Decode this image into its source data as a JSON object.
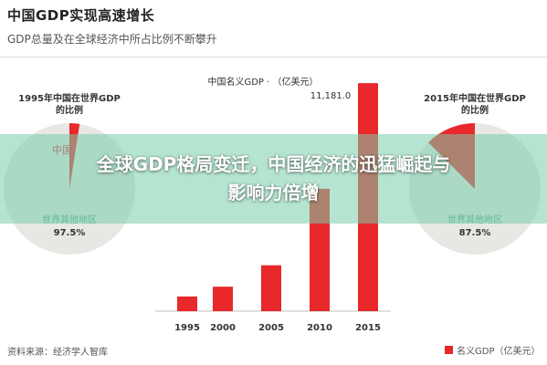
{
  "header": {
    "title": "中国GDP实现高速增长",
    "subtitle": "GDP总量及在全球经济中所占比例不断攀升"
  },
  "banner": {
    "text": "全球GDP格局变迁，中国经济的迅猛崛起与影响力倍增"
  },
  "footer": {
    "source": "资料来源：经济学人智库",
    "legend_label": "名义GDP（亿美元）"
  },
  "colors": {
    "bar": "#e8282b",
    "pie_rest": "#e7e7e4",
    "pie_china": "#e8282b",
    "china_label": "#e8282b",
    "rest_label": "#4ea08d"
  },
  "chart_data": [
    {
      "type": "bar",
      "title": "中国名义GDP · （亿美元）",
      "categories": [
        "1995",
        "2000",
        "2005",
        "2010",
        "2015"
      ],
      "values": [
        720,
        1200,
        2250,
        6000,
        11181
      ],
      "annotation": "11,181.0",
      "ylim": [
        0,
        11500
      ],
      "grid": false
    },
    {
      "type": "pie",
      "title": "1995年中国在世界GDP的比例",
      "labels": [
        "中国",
        "世界其他地区"
      ],
      "values": [
        2.5,
        97.5
      ],
      "value_labels": [
        "",
        "97.5%"
      ]
    },
    {
      "type": "pie",
      "title": "2015年中国在世界GDP的比例",
      "labels": [
        "中国",
        "世界其他地区"
      ],
      "values": [
        12.5,
        87.5
      ],
      "value_labels": [
        "",
        "87.5%"
      ]
    }
  ]
}
